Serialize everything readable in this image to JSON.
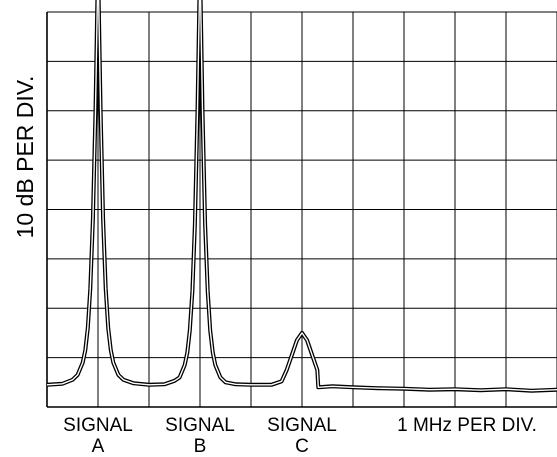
{
  "chart_data": {
    "type": "line",
    "title": "",
    "xlabel": "1 MHz PER DIV.",
    "ylabel": "10 dB PER DIV.",
    "grid": true,
    "x_divisions": 10,
    "y_divisions": 8,
    "xlim": [
      0,
      10
    ],
    "ylim": [
      0,
      8
    ],
    "signals": [
      {
        "line1": "SIGNAL",
        "line2": "A",
        "center_div": 1.0
      },
      {
        "line1": "SIGNAL",
        "line2": "B",
        "center_div": 3.0
      },
      {
        "line1": "SIGNAL",
        "line2": "C",
        "center_div": 5.0
      }
    ],
    "series": [
      {
        "x": [
          0,
          0.3,
          0.5,
          0.6,
          0.7,
          0.75,
          0.8,
          0.85,
          0.9,
          0.95,
          1.0,
          1.05,
          1.1,
          1.15,
          1.2,
          1.25,
          1.3,
          1.4,
          1.5,
          1.7,
          2.0,
          2.3,
          2.5,
          2.6,
          2.7,
          2.75,
          2.8,
          2.85,
          2.9,
          2.95,
          3.0,
          3.05,
          3.1,
          3.15,
          3.2,
          3.25,
          3.3,
          3.4,
          3.5,
          3.7,
          4.0,
          4.4,
          4.6,
          4.7,
          4.8,
          4.9,
          5.0,
          5.1,
          5.2,
          5.3,
          5.32,
          5.6,
          6.0,
          6.5,
          7.0,
          7.5,
          8.0,
          8.5,
          9.0,
          9.5,
          10.0
        ],
        "y": [
          0.45,
          0.47,
          0.55,
          0.65,
          0.9,
          1.15,
          1.6,
          2.4,
          3.8,
          6.0,
          9.0,
          6.0,
          3.8,
          2.4,
          1.6,
          1.15,
          0.9,
          0.65,
          0.55,
          0.48,
          0.45,
          0.46,
          0.53,
          0.6,
          0.85,
          1.1,
          1.55,
          2.35,
          3.7,
          6.0,
          9.0,
          6.0,
          3.7,
          2.35,
          1.55,
          1.1,
          0.85,
          0.6,
          0.5,
          0.46,
          0.45,
          0.45,
          0.52,
          0.75,
          1.05,
          1.35,
          1.5,
          1.35,
          1.05,
          0.75,
          0.4,
          0.42,
          0.4,
          0.38,
          0.37,
          0.35,
          0.36,
          0.34,
          0.36,
          0.33,
          0.35
        ]
      }
    ]
  }
}
